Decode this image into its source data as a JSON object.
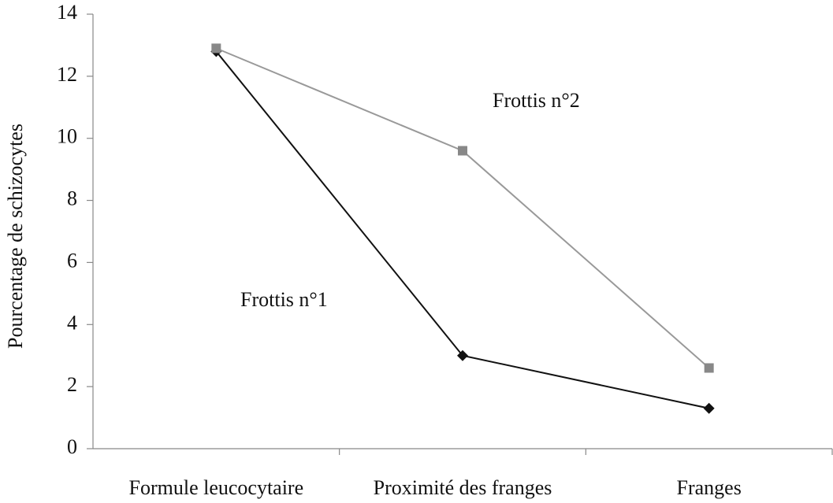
{
  "chart_data": {
    "type": "line",
    "y_label": "Pourcentage de schizocytes",
    "categories": [
      "Formule leucocytaire",
      "Proximité des franges",
      "Franges"
    ],
    "series": [
      {
        "name": "Frottis n°1",
        "color": "#111111",
        "marker": "diamond",
        "values": [
          12.8,
          3.0,
          1.3
        ]
      },
      {
        "name": "Frottis n°2",
        "color": "#999999",
        "marker": "square",
        "values": [
          12.9,
          9.6,
          2.6
        ]
      }
    ],
    "ylim": [
      0,
      14
    ],
    "yticks": [
      0,
      2,
      4,
      6,
      8,
      10,
      12,
      14
    ],
    "grid": false
  }
}
